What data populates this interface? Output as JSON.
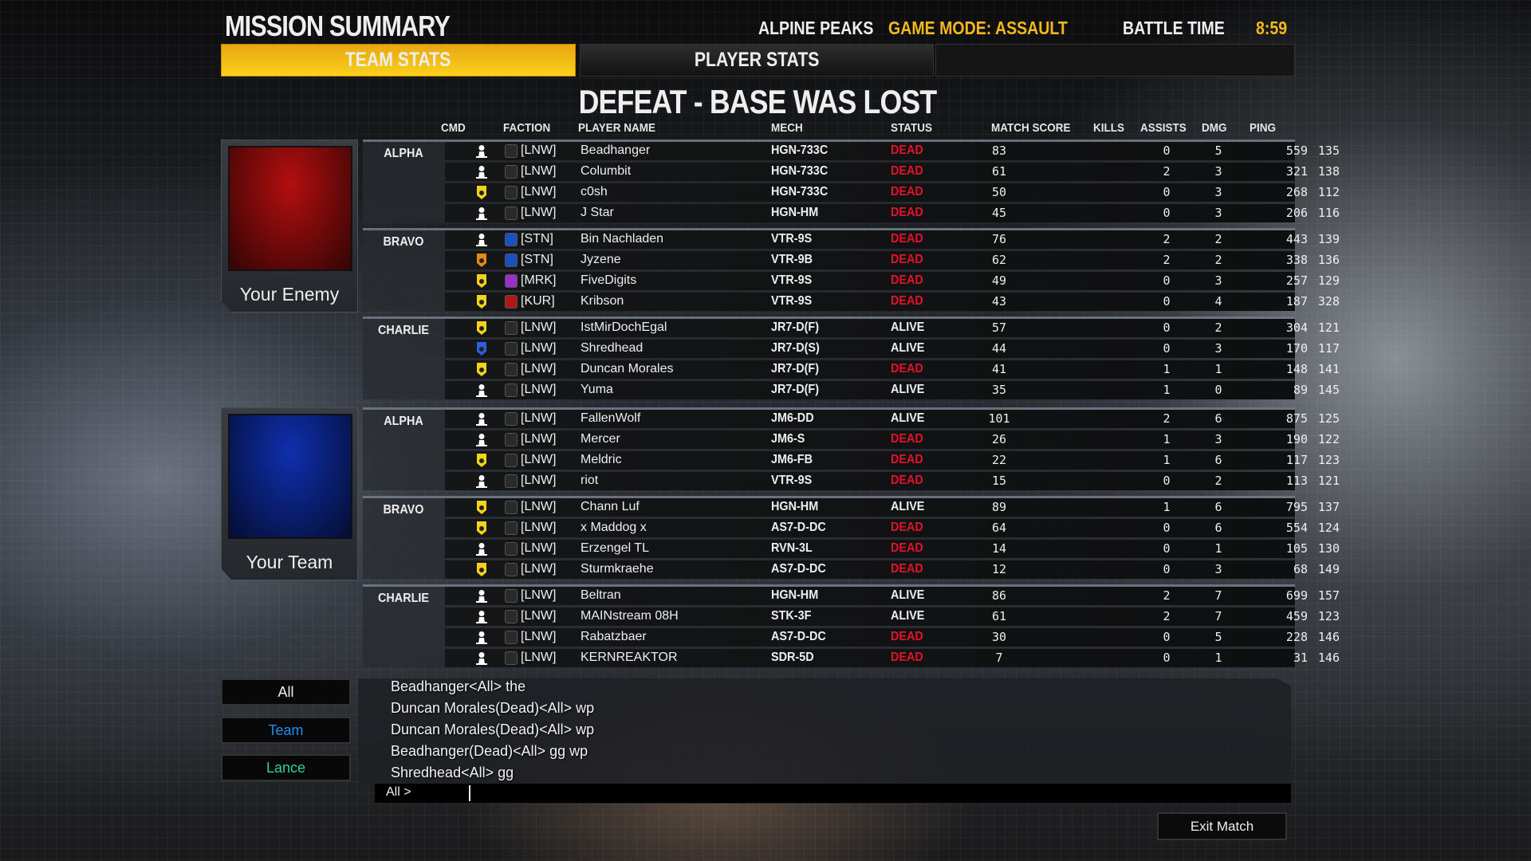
{
  "header": {
    "title": "MISSION SUMMARY",
    "map": "ALPINE PEAKS",
    "game_mode": "GAME MODE: ASSAULT",
    "battle_time_label": "BATTLE TIME",
    "battle_time": "8:59"
  },
  "tabs": [
    {
      "label": "TEAM STATS",
      "active": true
    },
    {
      "label": "PLAYER STATS",
      "active": false
    }
  ],
  "result": "DEFEAT - BASE WAS LOST",
  "columns": {
    "cmd": "CMD",
    "faction": "FACTION",
    "name": "PLAYER NAME",
    "mech": "MECH",
    "status": "STATUS",
    "score": "MATCH SCORE",
    "kills": "KILLS",
    "assists": "ASSISTS",
    "dmg": "DMG",
    "ping": "PING"
  },
  "colors": {
    "accent": "#f2b81c",
    "dead": "#e3132b",
    "alive": "#eeeeee",
    "team_chat": "#1e8ff0",
    "lance_chat": "#2fd39a"
  },
  "teams": [
    {
      "label": "Your Enemy",
      "flag_color": "#b30f0f",
      "lances": [
        {
          "label": "ALPHA",
          "players": [
            {
              "cmd": "pilot",
              "faction": "LNW",
              "name": "Beadhanger",
              "mech": "HGN-733C",
              "status": "DEAD",
              "score": 83,
              "kills": 0,
              "assists": 5,
              "dmg": 559,
              "ping": 135
            },
            {
              "cmd": "pilot",
              "faction": "LNW",
              "name": "Columbit",
              "mech": "HGN-733C",
              "status": "DEAD",
              "score": 61,
              "kills": 2,
              "assists": 3,
              "dmg": 321,
              "ping": 138
            },
            {
              "cmd": "badge-yellow",
              "faction": "LNW",
              "name": "c0sh",
              "mech": "HGN-733C",
              "status": "DEAD",
              "score": 50,
              "kills": 0,
              "assists": 3,
              "dmg": 268,
              "ping": 112
            },
            {
              "cmd": "pilot",
              "faction": "LNW",
              "name": "J Star",
              "mech": "HGN-HM",
              "status": "DEAD",
              "score": 45,
              "kills": 0,
              "assists": 3,
              "dmg": 206,
              "ping": 116
            }
          ]
        },
        {
          "label": "BRAVO",
          "players": [
            {
              "cmd": "pilot",
              "faction": "STN",
              "name": "Bin Nachladen",
              "mech": "VTR-9S",
              "status": "DEAD",
              "score": 76,
              "kills": 2,
              "assists": 2,
              "dmg": 443,
              "ping": 139
            },
            {
              "cmd": "badge-orange",
              "faction": "STN",
              "name": "Jyzene",
              "mech": "VTR-9B",
              "status": "DEAD",
              "score": 62,
              "kills": 2,
              "assists": 2,
              "dmg": 338,
              "ping": 136
            },
            {
              "cmd": "badge-yellow",
              "faction": "MRK",
              "name": "FiveDigits",
              "mech": "VTR-9S",
              "status": "DEAD",
              "score": 49,
              "kills": 0,
              "assists": 3,
              "dmg": 257,
              "ping": 129
            },
            {
              "cmd": "badge-yellow",
              "faction": "KUR",
              "name": "Kribson",
              "mech": "VTR-9S",
              "status": "DEAD",
              "score": 43,
              "kills": 0,
              "assists": 4,
              "dmg": 187,
              "ping": 328
            }
          ]
        },
        {
          "label": "CHARLIE",
          "players": [
            {
              "cmd": "badge-yellow",
              "faction": "LNW",
              "name": "IstMirDochEgal",
              "mech": "JR7-D(F)",
              "status": "ALIVE",
              "score": 57,
              "kills": 0,
              "assists": 2,
              "dmg": 304,
              "ping": 121
            },
            {
              "cmd": "badge-blue",
              "faction": "LNW",
              "name": "Shredhead",
              "mech": "JR7-D(S)",
              "status": "ALIVE",
              "score": 44,
              "kills": 0,
              "assists": 3,
              "dmg": 170,
              "ping": 117
            },
            {
              "cmd": "badge-yellow",
              "faction": "LNW",
              "name": "Duncan Morales",
              "mech": "JR7-D(F)",
              "status": "DEAD",
              "score": 41,
              "kills": 1,
              "assists": 1,
              "dmg": 148,
              "ping": 141
            },
            {
              "cmd": "pilot",
              "faction": "LNW",
              "name": "Yuma",
              "mech": "JR7-D(F)",
              "status": "ALIVE",
              "score": 35,
              "kills": 1,
              "assists": 0,
              "dmg": 89,
              "ping": 145
            }
          ]
        }
      ]
    },
    {
      "label": "Your Team",
      "flag_color": "#0f2fae",
      "lances": [
        {
          "label": "ALPHA",
          "players": [
            {
              "cmd": "pilot",
              "faction": "LNW",
              "name": "FallenWolf",
              "mech": "JM6-DD",
              "status": "ALIVE",
              "score": 101,
              "kills": 2,
              "assists": 6,
              "dmg": 875,
              "ping": 125
            },
            {
              "cmd": "pilot",
              "faction": "LNW",
              "name": "Mercer",
              "mech": "JM6-S",
              "status": "DEAD",
              "score": 26,
              "kills": 1,
              "assists": 3,
              "dmg": 190,
              "ping": 122
            },
            {
              "cmd": "badge-yellow",
              "faction": "LNW",
              "name": "Meldric",
              "mech": "JM6-FB",
              "status": "DEAD",
              "score": 22,
              "kills": 1,
              "assists": 6,
              "dmg": 117,
              "ping": 123
            },
            {
              "cmd": "pilot",
              "faction": "LNW",
              "name": "riot",
              "mech": "VTR-9S",
              "status": "DEAD",
              "score": 15,
              "kills": 0,
              "assists": 2,
              "dmg": 113,
              "ping": 121
            }
          ]
        },
        {
          "label": "BRAVO",
          "players": [
            {
              "cmd": "badge-yellow",
              "faction": "LNW",
              "name": "Chann Luf",
              "mech": "HGN-HM",
              "status": "ALIVE",
              "score": 89,
              "kills": 1,
              "assists": 6,
              "dmg": 795,
              "ping": 137
            },
            {
              "cmd": "badge-yellow",
              "faction": "LNW",
              "name": "x Maddog x",
              "mech": "AS7-D-DC",
              "status": "DEAD",
              "score": 64,
              "kills": 0,
              "assists": 6,
              "dmg": 554,
              "ping": 124
            },
            {
              "cmd": "pilot",
              "faction": "LNW",
              "name": "Erzengel TL",
              "mech": "RVN-3L",
              "status": "DEAD",
              "score": 14,
              "kills": 0,
              "assists": 1,
              "dmg": 105,
              "ping": 130
            },
            {
              "cmd": "badge-yellow",
              "faction": "LNW",
              "name": "Sturmkraehe",
              "mech": "AS7-D-DC",
              "status": "DEAD",
              "score": 12,
              "kills": 0,
              "assists": 3,
              "dmg": 68,
              "ping": 149
            }
          ]
        },
        {
          "label": "CHARLIE",
          "players": [
            {
              "cmd": "pilot",
              "faction": "LNW",
              "name": "Beltran",
              "mech": "HGN-HM",
              "status": "ALIVE",
              "score": 86,
              "kills": 2,
              "assists": 7,
              "dmg": 699,
              "ping": 157
            },
            {
              "cmd": "pilot",
              "faction": "LNW",
              "name": "MAINstream 08H",
              "mech": "STK-3F",
              "status": "ALIVE",
              "score": 61,
              "kills": 2,
              "assists": 7,
              "dmg": 459,
              "ping": 123
            },
            {
              "cmd": "pilot",
              "faction": "LNW",
              "name": "Rabatzbaer",
              "mech": "AS7-D-DC",
              "status": "DEAD",
              "score": 30,
              "kills": 0,
              "assists": 5,
              "dmg": 228,
              "ping": 146
            },
            {
              "cmd": "pilot",
              "faction": "LNW",
              "name": "KERNREAKTOR",
              "mech": "SDR-5D",
              "status": "DEAD",
              "score": 7,
              "kills": 0,
              "assists": 1,
              "dmg": 31,
              "ping": 146
            }
          ]
        }
      ]
    }
  ],
  "faction_colors": {
    "LNW": "#2a2a2a",
    "STN": "#1d4fc4",
    "MRK": "#9b2fc9",
    "KUR": "#b01818"
  },
  "chat": {
    "channels": [
      "All",
      "Team",
      "Lance"
    ],
    "messages": [
      "Beadhanger<All> the",
      "Duncan Morales(Dead)<All> wp",
      "Duncan Morales(Dead)<All> wp",
      "Beadhanger(Dead)<All> gg wp",
      "Shredhead<All> gg"
    ],
    "input_prefix": "All >",
    "input_value": ""
  },
  "exit_label": "Exit Match"
}
